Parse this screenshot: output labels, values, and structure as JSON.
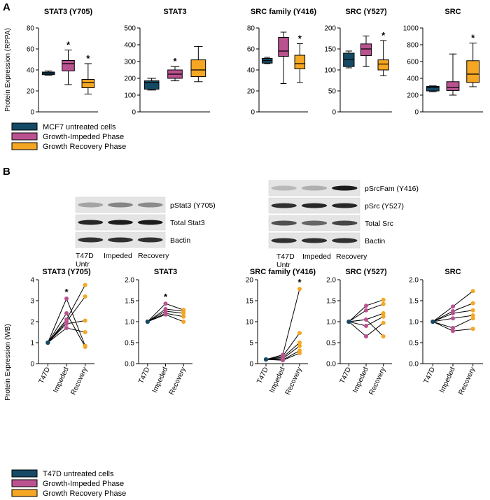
{
  "panels": {
    "a": "A",
    "b": "B"
  },
  "colors": {
    "untreated": "#154a66",
    "impeded": "#bb5290",
    "recovery": "#f5a623"
  },
  "rppa_ylabel": "Protein Expression (RPPA)",
  "wb_ylabel": "Protein Expression (WB)",
  "legend_top": [
    "MCF7 untreated cells",
    "Growth-Impeded Phase",
    "Growth Recovery Phase"
  ],
  "legend_bottom": [
    "T47D untreated cells",
    "Growth-Impeded Phase",
    "Growth Recovery Phase"
  ],
  "blot_left": {
    "labels": [
      "pStat3 (Y705)",
      "Total Stat3",
      "Bactin"
    ],
    "lanes": [
      "T47D\nUntr",
      "Impeded",
      "Recovery"
    ]
  },
  "blot_right": {
    "labels": [
      "pSrcFam (Y416)",
      "pSrc (Y527)",
      "Total Src",
      "Bactin"
    ],
    "lanes": [
      "T47D\nUntr",
      "Impeded",
      "Recovery"
    ]
  },
  "chart_data": [
    {
      "type": "box",
      "title": "STAT3 (Y705)",
      "ylim": [
        0,
        80
      ],
      "yticks": [
        0,
        20,
        40,
        60,
        80
      ],
      "boxes": [
        {
          "group": "MCF7 untreated cells",
          "min": 35,
          "q1": 35.5,
          "median": 37,
          "q3": 38,
          "max": 39,
          "star": false
        },
        {
          "group": "Growth-Impeded Phase",
          "min": 26,
          "q1": 39,
          "median": 46,
          "q3": 49,
          "max": 59,
          "star": true
        },
        {
          "group": "Growth Recovery Phase",
          "min": 17,
          "q1": 23,
          "median": 28,
          "q3": 31,
          "max": 46,
          "star": true
        }
      ]
    },
    {
      "type": "box",
      "title": "STAT3",
      "ylim": [
        0,
        500
      ],
      "yticks": [
        0,
        100,
        200,
        300,
        400,
        500
      ],
      "boxes": [
        {
          "group": "MCF7 untreated cells",
          "min": 130,
          "q1": 135,
          "median": 175,
          "q3": 185,
          "max": 200,
          "star": false
        },
        {
          "group": "Growth-Impeded Phase",
          "min": 185,
          "q1": 200,
          "median": 225,
          "q3": 250,
          "max": 270,
          "star": true
        },
        {
          "group": "Growth Recovery Phase",
          "min": 180,
          "q1": 210,
          "median": 250,
          "q3": 310,
          "max": 390,
          "star": false
        }
      ]
    },
    {
      "type": "box",
      "title": "SRC family (Y416)",
      "ylim": [
        0,
        80
      ],
      "yticks": [
        0,
        20,
        40,
        60,
        80
      ],
      "boxes": [
        {
          "group": "MCF7 untreated cells",
          "min": 46,
          "q1": 46.5,
          "median": 49,
          "q3": 51,
          "max": 52,
          "star": false
        },
        {
          "group": "Growth-Impeded Phase",
          "min": 27,
          "q1": 53,
          "median": 58,
          "q3": 71,
          "max": 76,
          "star": false
        },
        {
          "group": "Growth Recovery Phase",
          "min": 28,
          "q1": 41,
          "median": 46,
          "q3": 54,
          "max": 65,
          "star": true
        }
      ]
    },
    {
      "type": "box",
      "title": "SRC (Y527)",
      "ylim": [
        0,
        200
      ],
      "yticks": [
        0,
        50,
        100,
        150,
        200
      ],
      "boxes": [
        {
          "group": "MCF7 untreated cells",
          "min": 105,
          "q1": 108,
          "median": 125,
          "q3": 140,
          "max": 145,
          "star": false
        },
        {
          "group": "Growth-Impeded Phase",
          "min": 108,
          "q1": 134,
          "median": 150,
          "q3": 162,
          "max": 181,
          "star": false
        },
        {
          "group": "Growth Recovery Phase",
          "min": 86,
          "q1": 100,
          "median": 114,
          "q3": 124,
          "max": 170,
          "star": true
        }
      ]
    },
    {
      "type": "box",
      "title": "SRC",
      "ylim": [
        0,
        1000
      ],
      "yticks": [
        0,
        200,
        400,
        600,
        800,
        1000
      ],
      "boxes": [
        {
          "group": "MCF7 untreated cells",
          "min": 240,
          "q1": 250,
          "median": 290,
          "q3": 305,
          "max": 310,
          "star": false
        },
        {
          "group": "Growth-Impeded Phase",
          "min": 200,
          "q1": 255,
          "median": 290,
          "q3": 360,
          "max": 690,
          "star": false
        },
        {
          "group": "Growth Recovery Phase",
          "min": 300,
          "q1": 350,
          "median": 450,
          "q3": 610,
          "max": 820,
          "star": true
        }
      ]
    },
    {
      "type": "line",
      "title": "STAT3 (Y705)",
      "ylim": [
        0,
        4
      ],
      "yticks": [
        0,
        1,
        2,
        3,
        4
      ],
      "categories": [
        "T47D",
        "Impeded",
        "Recovery"
      ],
      "star_index": 1,
      "lines": [
        [
          1,
          3.1,
          0.85
        ],
        [
          1,
          2.4,
          0.8
        ],
        [
          1,
          2.1,
          3.75
        ],
        [
          1,
          2.0,
          3.2
        ],
        [
          1,
          1.9,
          2.05
        ],
        [
          1,
          1.7,
          1.5
        ]
      ]
    },
    {
      "type": "line",
      "title": "STAT3",
      "ylim": [
        0,
        2.0
      ],
      "yticks": [
        0,
        0.5,
        1.0,
        1.5,
        2.0
      ],
      "categories": [
        "T47D",
        "Impeded",
        "Recovery"
      ],
      "star_index": 1,
      "lines": [
        [
          1,
          1.43,
          1.28
        ],
        [
          1,
          1.3,
          1.25
        ],
        [
          1,
          1.25,
          1.2
        ],
        [
          1,
          1.2,
          1.12
        ],
        [
          1,
          1.17,
          1.0
        ]
      ]
    },
    {
      "type": "line",
      "title": "SRC family (Y416)",
      "ylim": [
        0,
        20
      ],
      "yticks": [
        0,
        5,
        10,
        15,
        20
      ],
      "categories": [
        "T47D",
        "Impeded",
        "Recovery"
      ],
      "star_index": 2,
      "lines": [
        [
          1,
          2.1,
          17.8
        ],
        [
          1,
          1.8,
          7.3
        ],
        [
          1,
          1.5,
          5.0
        ],
        [
          1,
          1.2,
          4.2
        ],
        [
          1,
          0.9,
          3.1
        ],
        [
          1,
          0.8,
          2.5
        ]
      ]
    },
    {
      "type": "line",
      "title": "SRC (Y527)",
      "ylim": [
        0,
        2.0
      ],
      "yticks": [
        0,
        0.5,
        1.0,
        1.5,
        2.0
      ],
      "categories": [
        "T47D",
        "Impeded",
        "Recovery"
      ],
      "star_index": -1,
      "lines": [
        [
          1,
          1.38,
          1.52
        ],
        [
          1,
          1.27,
          1.42
        ],
        [
          1,
          1.05,
          1.2
        ],
        [
          1,
          0.9,
          1.12
        ],
        [
          1,
          0.65,
          0.97
        ],
        [
          1,
          1.05,
          0.65
        ]
      ]
    },
    {
      "type": "line",
      "title": "SRC",
      "ylim": [
        0,
        2.0
      ],
      "yticks": [
        0,
        0.5,
        1.0,
        1.5,
        2.0
      ],
      "categories": [
        "T47D",
        "Impeded",
        "Recovery"
      ],
      "star_index": -1,
      "lines": [
        [
          1,
          1.36,
          1.73
        ],
        [
          1,
          1.25,
          1.44
        ],
        [
          1,
          1.2,
          1.27
        ],
        [
          1,
          1.08,
          1.15
        ],
        [
          1,
          0.85,
          1.08
        ],
        [
          1,
          0.78,
          0.83
        ]
      ]
    }
  ]
}
